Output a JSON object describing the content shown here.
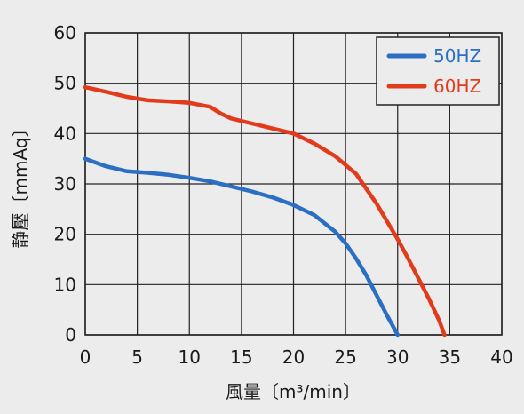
{
  "chart_data": {
    "type": "line",
    "title": "",
    "xlabel": "風量〔m³/min〕",
    "ylabel": "静壓〔mmAq〕",
    "xlim": [
      0,
      40
    ],
    "ylim": [
      0,
      60
    ],
    "xticks": [
      0,
      5,
      10,
      15,
      20,
      25,
      30,
      35,
      40
    ],
    "yticks": [
      0,
      10,
      20,
      30,
      40,
      50,
      60
    ],
    "grid": true,
    "legend_position": "top-right",
    "series": [
      {
        "name": "50HZ",
        "color": "#2a6fc4",
        "x": [
          0,
          2,
          4,
          6,
          8,
          10,
          12,
          14,
          16,
          18,
          20,
          22,
          24,
          25,
          26,
          27,
          28,
          29,
          30
        ],
        "y": [
          35,
          33.5,
          32.5,
          32.2,
          31.8,
          31.2,
          30.5,
          29.5,
          28.5,
          27.3,
          25.8,
          23.8,
          20.5,
          18.2,
          15.2,
          11.8,
          7.8,
          3.8,
          0
        ]
      },
      {
        "name": "60HZ",
        "color": "#e23b1c",
        "x": [
          0,
          2,
          4,
          6,
          8,
          10,
          12,
          13,
          14,
          16,
          18,
          20,
          22,
          24,
          26,
          28,
          29,
          30,
          31,
          32,
          33,
          34,
          34.5
        ],
        "y": [
          49.2,
          48.3,
          47.3,
          46.6,
          46.4,
          46.1,
          45.3,
          44,
          43,
          42,
          41,
          40,
          38,
          35.5,
          32,
          26,
          22.5,
          19,
          15.2,
          11.2,
          7.2,
          2.8,
          0
        ]
      }
    ]
  }
}
